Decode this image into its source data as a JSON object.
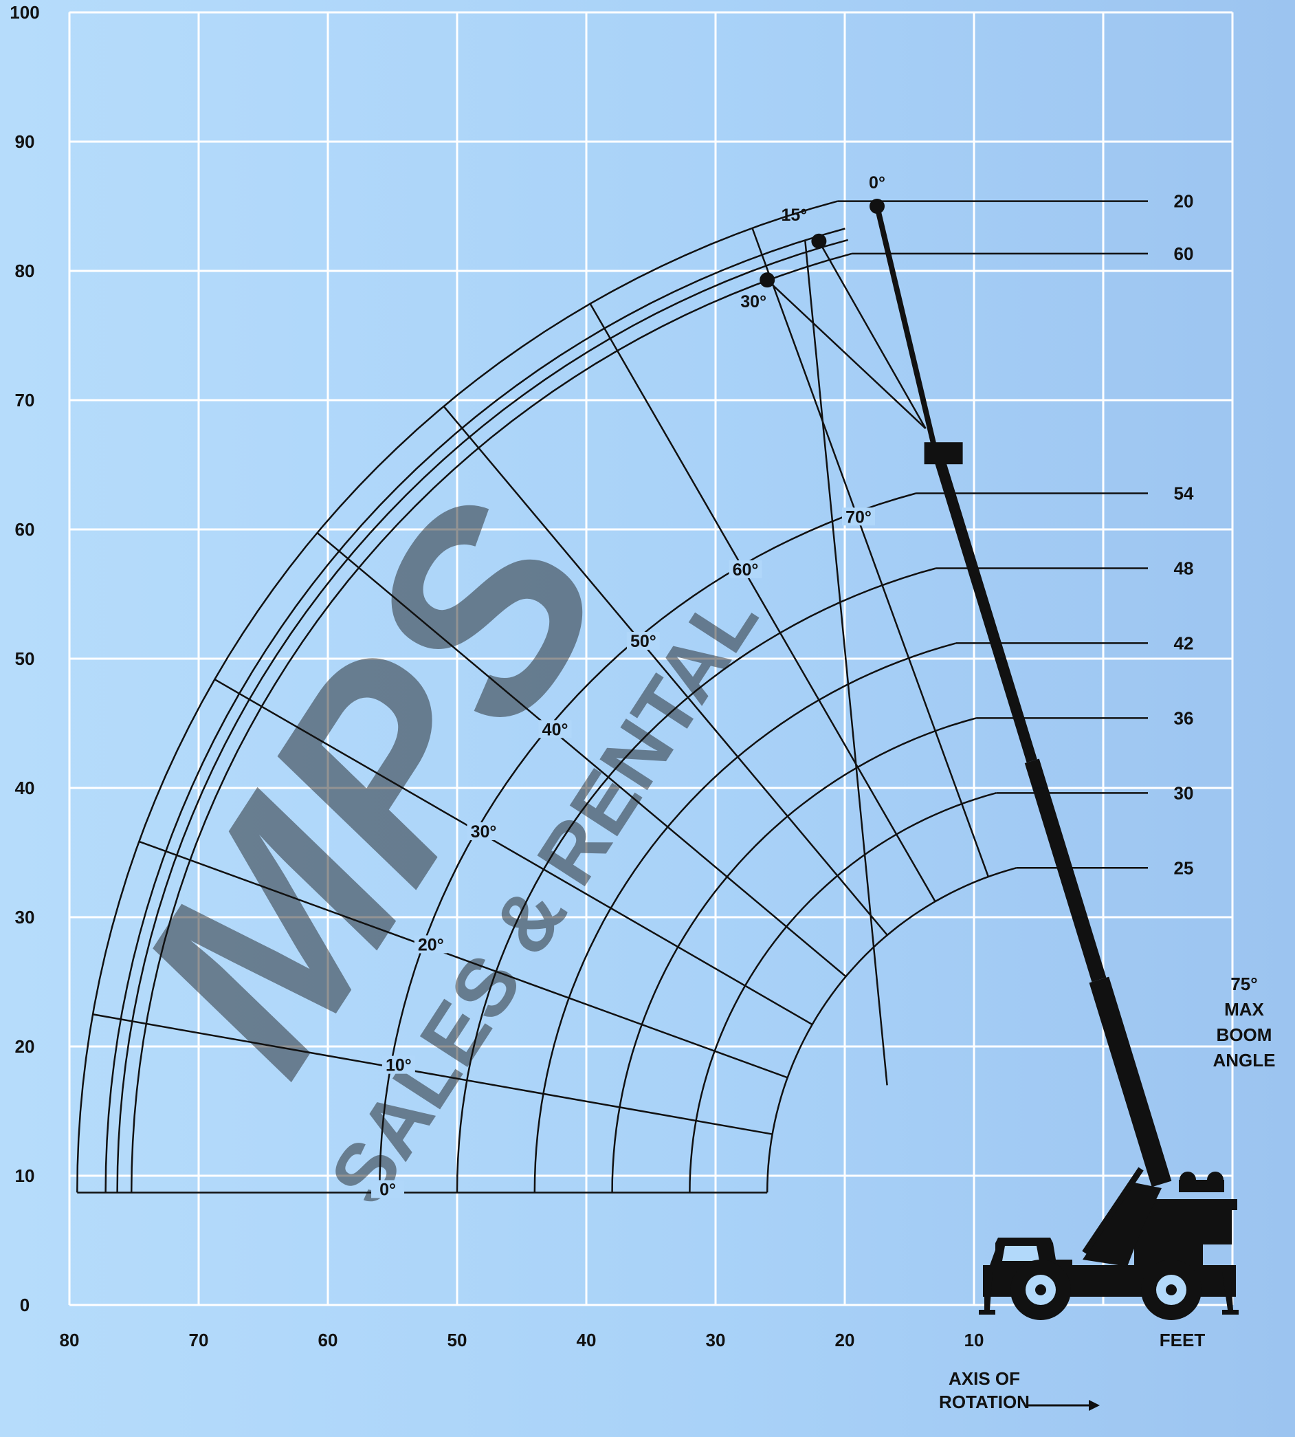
{
  "chart_data": {
    "type": "range-diagram",
    "x_axis": {
      "ticks": [
        80,
        70,
        60,
        50,
        40,
        30,
        20,
        10
      ],
      "unit_label": "FEET",
      "range": [
        80,
        -10
      ]
    },
    "y_axis": {
      "ticks": [
        0,
        10,
        20,
        30,
        40,
        50,
        60,
        70,
        80,
        90,
        100
      ],
      "range": [
        0,
        100
      ]
    },
    "pivot": {
      "x": 0,
      "y": 8.7
    },
    "boom_lengths": [
      {
        "label": "20",
        "length": 79.4
      },
      {
        "label": "60",
        "length": 75.2
      },
      {
        "label": "54",
        "length": 56.0
      },
      {
        "label": "48",
        "length": 50.0
      },
      {
        "label": "42",
        "length": 44.0
      },
      {
        "label": "36",
        "length": 38.0
      },
      {
        "label": "30",
        "length": 32.0
      },
      {
        "label": "25",
        "length": 26.0
      }
    ],
    "extra_outer_lengths": [
      77.2,
      76.3
    ],
    "boom_angles": [
      {
        "label": "0°",
        "angle": 0
      },
      {
        "label": "10°",
        "angle": 10
      },
      {
        "label": "20°",
        "angle": 20
      },
      {
        "label": "30°",
        "angle": 30
      },
      {
        "label": "40°",
        "angle": 40
      },
      {
        "label": "50°",
        "angle": 50
      },
      {
        "label": "60°",
        "angle": 60
      },
      {
        "label": "70°",
        "angle": 70
      }
    ],
    "max_boom_angle": 75,
    "jib": {
      "base": {
        "x": 13.0,
        "y": 66.0
      },
      "offsets": [
        {
          "label": "0°",
          "tip": {
            "x": 17.5,
            "y": 85.0
          }
        },
        {
          "label": "15°",
          "tip": {
            "x": 22.0,
            "y": 82.3
          }
        },
        {
          "label": "30°",
          "tip": {
            "x": 26.0,
            "y": 79.3
          }
        }
      ]
    }
  },
  "labels": {
    "max_angle_lines": [
      "75°",
      "MAX",
      "BOOM",
      "ANGLE"
    ],
    "axis_of_rotation_lines": [
      "AXIS OF",
      "ROTATION"
    ],
    "watermark_main": "MPS",
    "watermark_sub": "SALES & RENTAL"
  },
  "colors": {
    "background": "#b2d9fa",
    "grid": "#ffffff",
    "lines": "#111111",
    "watermark": "#7f9fbe"
  }
}
